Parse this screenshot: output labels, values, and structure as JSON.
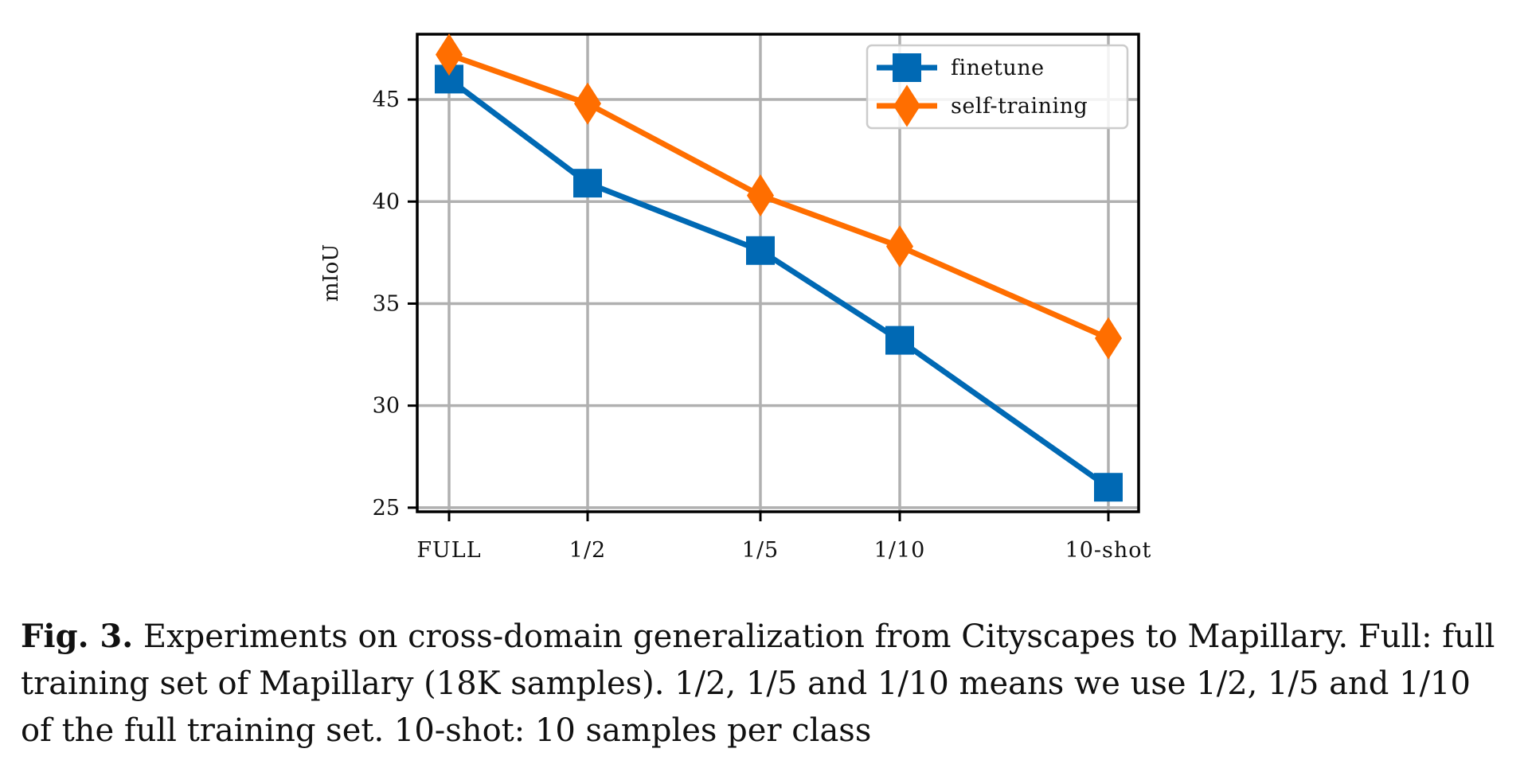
{
  "chart_data": {
    "type": "line",
    "title": "",
    "xlabel": "",
    "ylabel": "mIoU",
    "categories": [
      "FULL",
      "1/2",
      "1/5",
      "1/10",
      "10-shot"
    ],
    "yticks": [
      25,
      30,
      35,
      40,
      45
    ],
    "ylim": [
      24.8,
      48.2
    ],
    "grid": true,
    "legend_position": "top-right",
    "series": [
      {
        "name": "finetune",
        "values": [
          46.0,
          40.9,
          37.6,
          33.2,
          26.0
        ],
        "color": "#0069b4",
        "marker": "square"
      },
      {
        "name": "self-training",
        "values": [
          47.2,
          44.8,
          40.3,
          37.8,
          33.3
        ],
        "color": "#ff6e00",
        "marker": "diamond"
      }
    ]
  },
  "caption": {
    "label": "Fig. 3.",
    "text": "Experiments on cross-domain generalization from Cityscapes to Mapillary. Full: full training set of Mapillary (18K samples). 1/2, 1/5 and 1/10 means we use 1/2, 1/5 and 1/10 of the full training set. 10-shot: 10 samples per class"
  }
}
